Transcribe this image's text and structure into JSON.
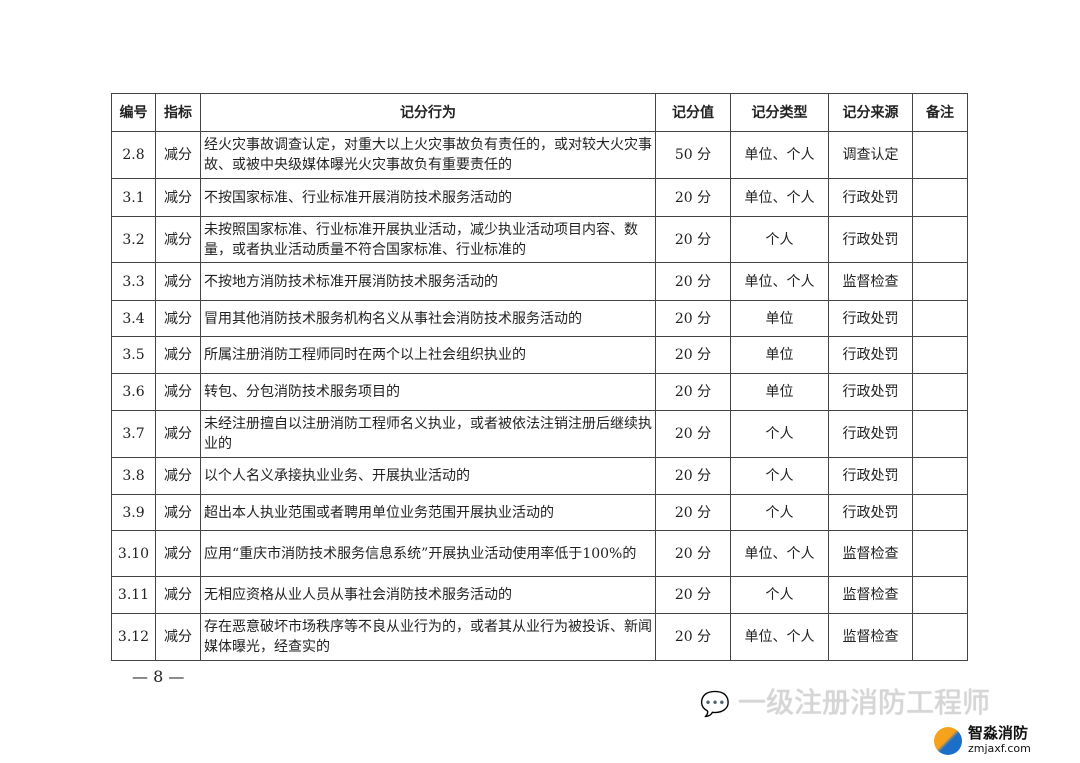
{
  "table": {
    "headers": [
      "编号",
      "指标",
      "记分行为",
      "记分值",
      "记分类型",
      "记分来源",
      "备注"
    ],
    "rows": [
      {
        "id": "2.8",
        "indicator": "减分",
        "behavior": "经火灾事故调查认定，对重大以上火灾事故负有责任的，或对较大火灾事故、或被中央级媒体曝光火灾事故负有重要责任的",
        "score": "50 分",
        "type": "单位、个人",
        "source": "调查认定",
        "note": ""
      },
      {
        "id": "3.1",
        "indicator": "减分",
        "behavior": "不按国家标准、行业标准开展消防技术服务活动的",
        "score": "20 分",
        "type": "单位、个人",
        "source": "行政处罚",
        "note": ""
      },
      {
        "id": "3.2",
        "indicator": "减分",
        "behavior": "未按照国家标准、行业标准开展执业活动，减少执业活动项目内容、数量，或者执业活动质量不符合国家标准、行业标准的",
        "score": "20 分",
        "type": "个人",
        "source": "行政处罚",
        "note": ""
      },
      {
        "id": "3.3",
        "indicator": "减分",
        "behavior": "不按地方消防技术标准开展消防技术服务活动的",
        "score": "20 分",
        "type": "单位、个人",
        "source": "监督检查",
        "note": ""
      },
      {
        "id": "3.4",
        "indicator": "减分",
        "behavior": "冒用其他消防技术服务机构名义从事社会消防技术服务活动的",
        "score": "20 分",
        "type": "单位",
        "source": "行政处罚",
        "note": ""
      },
      {
        "id": "3.5",
        "indicator": "减分",
        "behavior": "所属注册消防工程师同时在两个以上社会组织执业的",
        "score": "20 分",
        "type": "单位",
        "source": "行政处罚",
        "note": ""
      },
      {
        "id": "3.6",
        "indicator": "减分",
        "behavior": "转包、分包消防技术服务项目的",
        "score": "20 分",
        "type": "单位",
        "source": "行政处罚",
        "note": ""
      },
      {
        "id": "3.7",
        "indicator": "减分",
        "behavior": "未经注册擅自以注册消防工程师名义执业，或者被依法注销注册后继续执业的",
        "score": "20 分",
        "type": "个人",
        "source": "行政处罚",
        "note": ""
      },
      {
        "id": "3.8",
        "indicator": "减分",
        "behavior": "以个人名义承接执业业务、开展执业活动的",
        "score": "20 分",
        "type": "个人",
        "source": "行政处罚",
        "note": ""
      },
      {
        "id": "3.9",
        "indicator": "减分",
        "behavior": "超出本人执业范围或者聘用单位业务范围开展执业活动的",
        "score": "20 分",
        "type": "个人",
        "source": "行政处罚",
        "note": ""
      },
      {
        "id": "3.10",
        "indicator": "减分",
        "behavior": "应用“重庆市消防技术服务信息系统”开展执业活动使用率低于100%的",
        "score": "20 分",
        "type": "单位、个人",
        "source": "监督检查",
        "note": ""
      },
      {
        "id": "3.11",
        "indicator": "减分",
        "behavior": "无相应资格从业人员从事社会消防技术服务活动的",
        "score": "20 分",
        "type": "个人",
        "source": "监督检查",
        "note": ""
      },
      {
        "id": "3.12",
        "indicator": "减分",
        "behavior": "存在恶意破坏市场秩序等不良从业行为的，或者其从业行为被投诉、新闻媒体曝光，经查实的",
        "score": "20 分",
        "type": "单位、个人",
        "source": "监督检查",
        "note": ""
      }
    ]
  },
  "page_number": "— 8 —",
  "watermark": {
    "text": "一级注册消防工程师",
    "icon": "wechat-icon"
  },
  "brand": {
    "name": "智淼消防",
    "url": "zmjaxf.com",
    "colors": [
      "#f7a21c",
      "#1c6fc9"
    ]
  }
}
